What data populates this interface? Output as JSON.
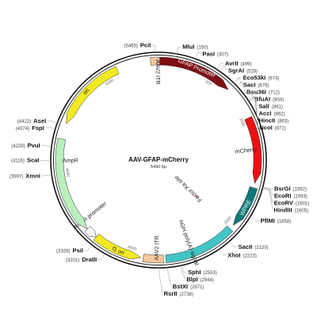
{
  "plasmid": {
    "name": "AAV-GFAP-mCherry",
    "size_label": "5490 bp",
    "total_bp": 5490,
    "backbone_color": "#111111"
  },
  "features": [
    {
      "name": "AAV2 ITR",
      "start": 5420,
      "end": 5490,
      "color": "#f6c89f",
      "direction": 0,
      "label_mode": "inside",
      "label_bp": 5480
    },
    {
      "name": "GFAP Promoter",
      "start": 10,
      "end": 682,
      "color": "#7d1015",
      "direction": 1,
      "label_mode": "arc",
      "text_color": "#ffffff",
      "label_bp": 345
    },
    {
      "name": "mCherry",
      "start": 990,
      "end": 1580,
      "color": "#ee1111",
      "direction": 1,
      "label_mode": "inside",
      "label_bp": 1280
    },
    {
      "name": "WPRE",
      "start": 1620,
      "end": 2000,
      "color": "#0f7777",
      "direction": 1,
      "label_mode": "arc",
      "text_color": "#ffffff",
      "label_bp": 1810
    },
    {
      "name": "hGH poly(A) signal",
      "start": 2040,
      "end": 2680,
      "color": "#43c5c5",
      "direction": 0,
      "label_mode": "inside",
      "label_bp": 2440
    },
    {
      "name": "AAV2 ITR",
      "start": 2700,
      "end": 2880,
      "color": "#f6c89f",
      "direction": 0,
      "label_mode": "inside",
      "label_bp": 2760
    },
    {
      "name": "f1 ori",
      "start": 2900,
      "end": 3340,
      "color": "#f3ea21",
      "direction": -1,
      "label_mode": "arc",
      "text_color": "#222222",
      "label_bp": 3110
    },
    {
      "name": "AmpR promoter",
      "start": 3340,
      "end": 3445,
      "color": "#f4f4f4",
      "direction": -1,
      "label_mode": "inside",
      "label_bp": 3520
    },
    {
      "name": "AmpR",
      "start": 3445,
      "end": 4305,
      "color": "#b9efbd",
      "direction": -1,
      "label_mode": "inside",
      "label_bp": 4110
    },
    {
      "name": "ori",
      "start": 4445,
      "end": 5115,
      "color": "#f3ea21",
      "direction": -1,
      "label_mode": "arc",
      "text_color": "#222222",
      "label_bp": 4780
    }
  ],
  "inner_feature": {
    "name": "Factor Xa site",
    "bp": 2040,
    "color": "#f2a3a3"
  },
  "ticks": [
    {
      "label": "500",
      "bp": 500
    },
    {
      "label": "1000",
      "bp": 1000
    },
    {
      "label": "2000",
      "bp": 2000
    },
    {
      "label": "3000",
      "bp": 3000
    },
    {
      "label": "4000",
      "bp": 4000
    },
    {
      "label": "5000",
      "bp": 5000
    }
  ],
  "sites": [
    {
      "name": "PciI",
      "pos": "(5465)",
      "bp": 5465
    },
    {
      "name": "MluI",
      "pos": "(150)",
      "bp": 150
    },
    {
      "name": "PasI",
      "pos": "(307)",
      "bp": 307
    },
    {
      "name": "AvrII",
      "pos": "(499)",
      "bp": 499
    },
    {
      "name": "SgrAI",
      "pos": "(528)",
      "bp": 528
    },
    {
      "name": "Eco53kI",
      "pos": "(674)",
      "bp": 674
    },
    {
      "name": "SacI",
      "pos": "(676)",
      "bp": 676
    },
    {
      "name": "Bsu36I",
      "pos": "(712)",
      "bp": 712
    },
    {
      "name": "BfuAI",
      "pos": "(804)",
      "bp": 804
    },
    {
      "name": "SalI",
      "pos": "(861)",
      "bp": 861
    },
    {
      "name": "AccI",
      "pos": "(862)",
      "bp": 862
    },
    {
      "name": "HincII",
      "pos": "(863)",
      "bp": 863
    },
    {
      "name": "NcoI",
      "pos": "(871)",
      "bp": 871
    },
    {
      "name": "BsrGI",
      "pos": "(1592)",
      "bp": 1592
    },
    {
      "name": "EcoRI",
      "pos": "(1593)",
      "bp": 1593
    },
    {
      "name": "EcoRV",
      "pos": "(1601)",
      "bp": 1601
    },
    {
      "name": "HindIII",
      "pos": "(1605)",
      "bp": 1605
    },
    {
      "name": "PflMI",
      "pos": "(1858)",
      "bp": 1858
    },
    {
      "name": "SacII",
      "pos": "(2120)",
      "bp": 2120
    },
    {
      "name": "XhoI",
      "pos": "(2223)",
      "bp": 2223
    },
    {
      "name": "SphI",
      "pos": "(2553)",
      "bp": 2553
    },
    {
      "name": "BlpI",
      "pos": "(2564)",
      "bp": 2564
    },
    {
      "name": "BstXI",
      "pos": "(2671)",
      "bp": 2671
    },
    {
      "name": "RsrII",
      "pos": "(2738)",
      "bp": 2738
    },
    {
      "name": "DraIII",
      "pos": "(3201)",
      "bp": 3201
    },
    {
      "name": "PsiI",
      "pos": "(3326)",
      "bp": 3326
    },
    {
      "name": "XmnI",
      "pos": "(3997)",
      "bp": 3997
    },
    {
      "name": "ScaI",
      "pos": "(4116)",
      "bp": 4116
    },
    {
      "name": "PvuI",
      "pos": "(4228)",
      "bp": 4228
    },
    {
      "name": "FspI",
      "pos": "(4374)",
      "bp": 4374
    },
    {
      "name": "AseI",
      "pos": "(4422)",
      "bp": 4422
    }
  ]
}
